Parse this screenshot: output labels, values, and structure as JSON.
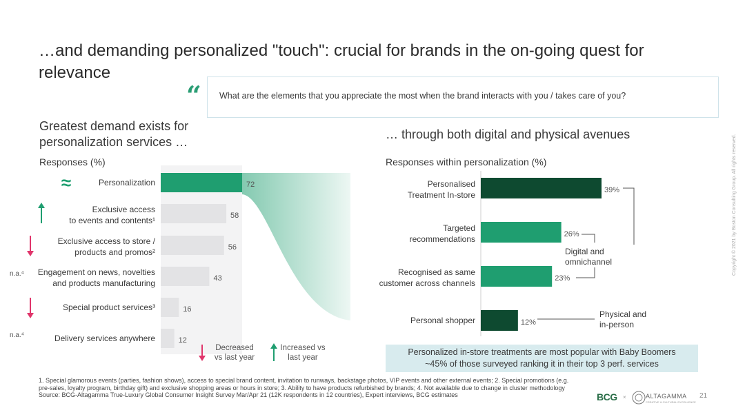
{
  "title": "…and demanding personalized \"touch\": crucial for brands in the on-going quest for relevance",
  "quote": {
    "mark": "“",
    "text": "What are the elements that you appreciate the most when the brand interacts with you / takes care of you?"
  },
  "colors": {
    "green_main": "#1f9e70",
    "green_dark": "#0e4a30",
    "gray_bar": "#e3e3e5",
    "arrow_up": "#1f9e70",
    "arrow_down": "#e0356b",
    "callout_bg": "#d8ebee"
  },
  "left": {
    "title_line1": "Greatest demand exists for",
    "title_line2": "personalization services …",
    "responses_label": "Responses (%)",
    "approx_symbol": "≈",
    "legend": {
      "decreased_line1": "Decreased",
      "decreased_line2": "vs last year",
      "increased_line1": "Increased vs",
      "increased_line2": "last year"
    }
  },
  "right": {
    "title": "… through both digital and physical avenues",
    "responses_label": "Responses within personalization (%)",
    "group_digital_line1": "Digital and",
    "group_digital_line2": "omnichannel",
    "group_physical_line1": "Physical and",
    "group_physical_line2": "in-person"
  },
  "callout": {
    "line1": "Personalized in-store treatments are most popular with Baby Boomers",
    "line2": "~45% of those surveyed ranking it in their top 3 perf. services"
  },
  "footnotes": {
    "line1": "1. Special glamorous events (parties, fashion shows), access to special brand content, invitation to runways, backstage photos, VIP events and other external events; 2. Special promotions (e.g.",
    "line2": "pre-sales, loyalty program, birthday gift) and exclusive shopping areas or hours in store; 3. Ability to have products refurbished by brands; 4. Not available due to change in cluster methodology",
    "line3": "Source: BCG-Altagamma True-Luxury Global Consumer Insight Survey Mar/Apr 21 (12K respondents in 12 countries), Expert interviews, BCG estimates"
  },
  "page_number": "21",
  "copyright": "Copyright © 2021 by Boston Consulting Group. All rights reserved.",
  "logos": {
    "bcg": "BCG",
    "x": "×",
    "altagamma": "ALTAGAMMA",
    "altagamma_sub": "CREATIVE & CULTURAL EXCELLENCE"
  },
  "chart_data": [
    {
      "type": "bar",
      "orientation": "horizontal",
      "title": "Greatest demand exists for personalization services …",
      "ylabel": "Responses (%)",
      "xlim": [
        0,
        80
      ],
      "categories": [
        {
          "line1": "Personalization",
          "line2": "",
          "trend": "approx",
          "prefix": ""
        },
        {
          "line1": "Exclusive access",
          "line2": "to events and contents¹",
          "trend": "up",
          "prefix": ""
        },
        {
          "line1": "Exclusive access to store /",
          "line2": "products and promos²",
          "trend": "down",
          "prefix": ""
        },
        {
          "line1": "Engagement on news, novelties",
          "line2": "and products manufacturing",
          "trend": "na",
          "prefix": "n.a.⁴"
        },
        {
          "line1": "Special product services³",
          "line2": "",
          "trend": "down",
          "prefix": ""
        },
        {
          "line1": "Delivery services anywhere",
          "line2": "",
          "trend": "na",
          "prefix": "n.a.⁴"
        }
      ],
      "values": [
        72,
        58,
        56,
        43,
        16,
        12
      ],
      "labels": [
        "72",
        "58",
        "56",
        "43",
        "16",
        "12"
      ],
      "highlight_index": 0
    },
    {
      "type": "bar",
      "orientation": "horizontal",
      "title": "… through both digital and physical avenues",
      "ylabel": "Responses within personalization (%)",
      "xlim": [
        0,
        40
      ],
      "categories": [
        {
          "line1": "Personalised",
          "line2": "Treatment In-store",
          "group": "physical"
        },
        {
          "line1": "Targeted",
          "line2": "recommendations",
          "group": "digital"
        },
        {
          "line1": "Recognised as same",
          "line2": "customer across channels",
          "group": "digital"
        },
        {
          "line1": "Personal shopper",
          "line2": "",
          "group": "physical"
        }
      ],
      "values": [
        39,
        26,
        23,
        12
      ],
      "labels": [
        "39%",
        "26%",
        "23%",
        "12%"
      ]
    }
  ]
}
